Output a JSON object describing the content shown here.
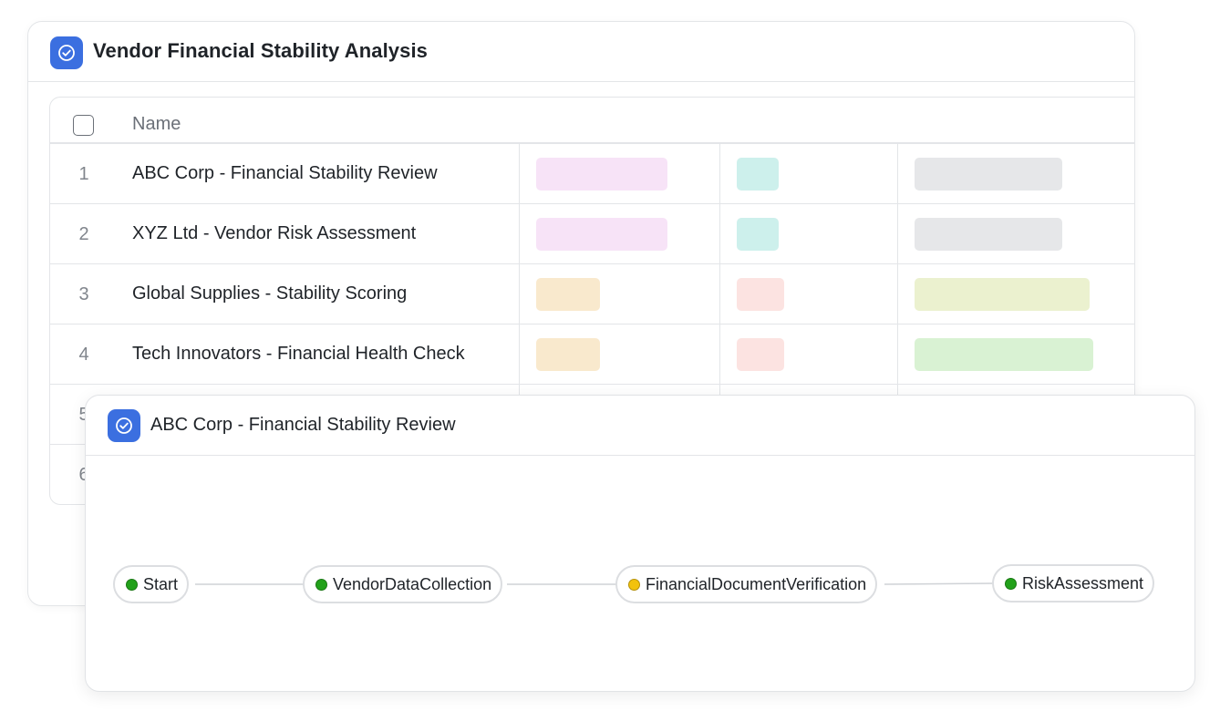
{
  "table_card": {
    "title": "Vendor Financial Stability Analysis",
    "badge_icon": "check-circle-icon",
    "column_header_name": "Name",
    "rows": [
      {
        "num": "1",
        "name": "ABC Corp - Financial Stability Review",
        "tag_colors": [
          "#f7e3f7",
          "#cdf0ec",
          "#e6e7e9"
        ]
      },
      {
        "num": "2",
        "name": "XYZ Ltd - Vendor Risk Assessment",
        "tag_colors": [
          "#f7e3f7",
          "#cdf0ec",
          "#e6e7e9"
        ]
      },
      {
        "num": "3",
        "name": "Global Supplies - Stability Scoring",
        "tag_colors": [
          "#f9e9cd",
          "#fce3e1",
          "#ebf1cf"
        ]
      },
      {
        "num": "4",
        "name": "Tech Innovators - Financial Health Check",
        "tag_colors": [
          "#f9e9cd",
          "#fce3e1",
          "#d9f2d3"
        ]
      },
      {
        "num": "5",
        "name": ""
      },
      {
        "num": "6",
        "name": ""
      }
    ]
  },
  "detail_card": {
    "title": "ABC Corp - Financial Stability Review",
    "badge_icon": "check-circle-icon",
    "workflow": [
      {
        "label": "Start",
        "status_color": "#22a11a"
      },
      {
        "label": "VendorDataCollection",
        "status_color": "#22a11a"
      },
      {
        "label": "FinancialDocumentVerification",
        "status_color": "#f2c20c"
      },
      {
        "label": "RiskAssessment",
        "status_color": "#22a11a"
      }
    ]
  },
  "colors": {
    "accent": "#3b6fe0",
    "border": "#e3e5e8",
    "connector": "#cfd2d6"
  }
}
